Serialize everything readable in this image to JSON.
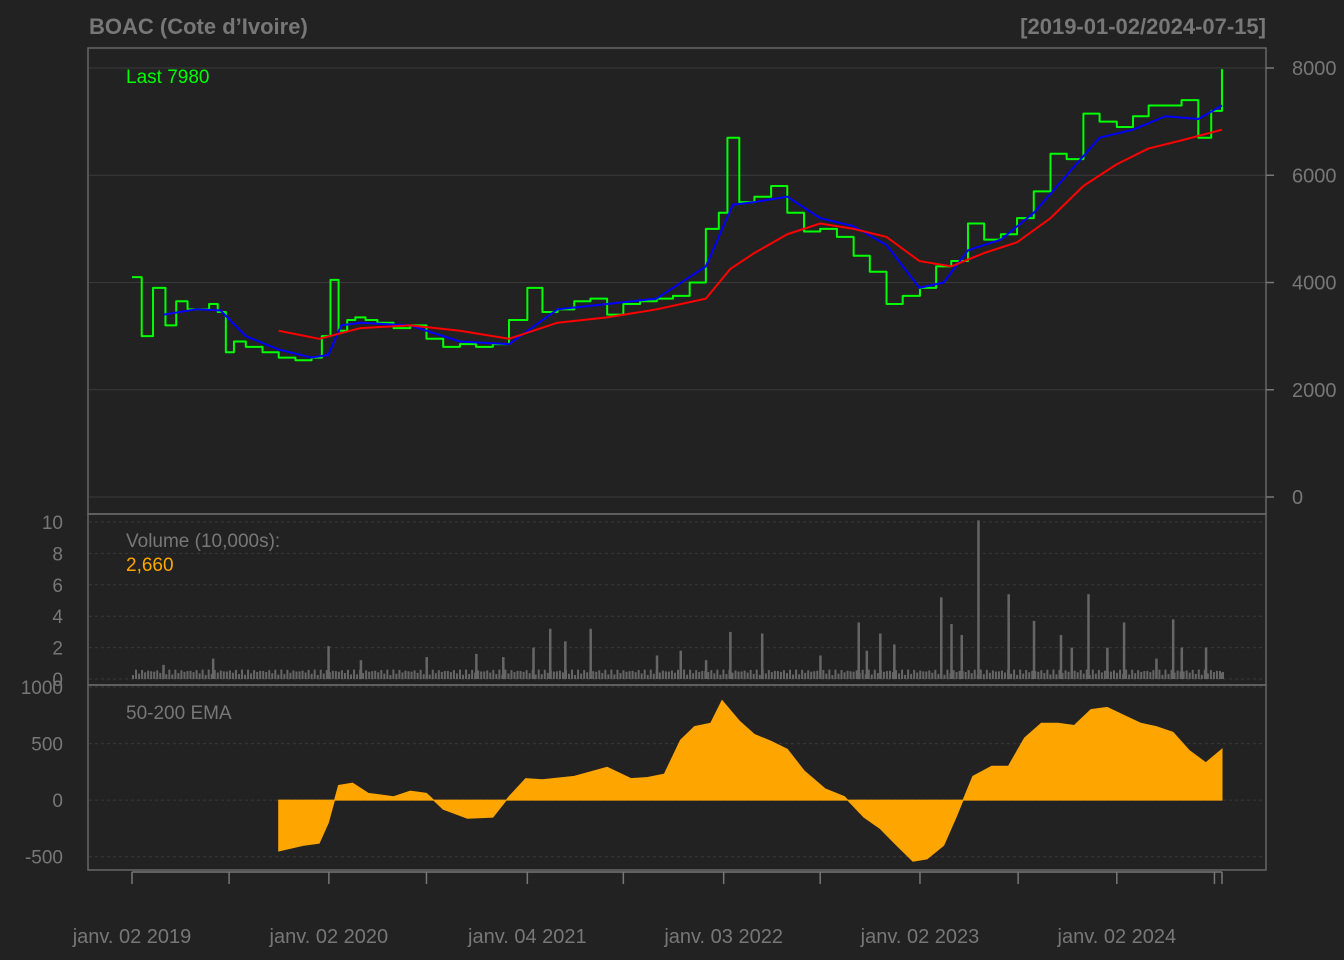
{
  "header": {
    "title": "BOAC (Cote d’Ivoire)",
    "date_range": "[2019-01-02/2024-07-15]"
  },
  "colors": {
    "background": "#222222",
    "price": "#00ff00",
    "ema_fast": "#0000ff",
    "ema_slow": "#ff0000",
    "volume": "#666666",
    "oscillator": "#ffa500",
    "text": "#777777",
    "grid": "#3a3a3a"
  },
  "chart_data": [
    {
      "type": "line",
      "panel": "price",
      "annotation": "Last 7980",
      "ylim": [
        0,
        8000
      ],
      "yticks": [
        0,
        2000,
        4000,
        6000,
        8000
      ],
      "x_tick_labels": [
        "janv. 02 2019",
        "janv. 02 2020",
        "janv. 04 2021",
        "janv. 03 2022",
        "janv. 02 2023",
        "janv. 02 2024"
      ],
      "x_tick_dates": [
        "2019-01-02",
        "2020-01-02",
        "2021-01-04",
        "2022-01-03",
        "2023-01-02",
        "2024-01-02"
      ],
      "series": [
        {
          "x": [
            "2019-01-02",
            "2019-01-20",
            "2019-02-10",
            "2019-03-05",
            "2019-03-25",
            "2019-04-15",
            "2019-05-05",
            "2019-05-25",
            "2019-06-10",
            "2019-06-25",
            "2019-07-10",
            "2019-08-01",
            "2019-09-01",
            "2019-10-01",
            "2019-11-01",
            "2019-12-01",
            "2019-12-20",
            "2020-01-05",
            "2020-01-20",
            "2020-02-05",
            "2020-02-20",
            "2020-03-10",
            "2020-04-01",
            "2020-05-01",
            "2020-06-01",
            "2020-07-01",
            "2020-08-01",
            "2020-09-01",
            "2020-10-01",
            "2020-11-01",
            "2020-12-01",
            "2021-01-04",
            "2021-02-01",
            "2021-03-01",
            "2021-04-01",
            "2021-05-01",
            "2021-06-01",
            "2021-07-01",
            "2021-08-01",
            "2021-09-01",
            "2021-10-01",
            "2021-11-01",
            "2021-12-01",
            "2021-12-25",
            "2022-01-10",
            "2022-02-01",
            "2022-03-01",
            "2022-04-01",
            "2022-05-01",
            "2022-06-01",
            "2022-07-01",
            "2022-08-01",
            "2022-09-01",
            "2022-10-01",
            "2022-11-01",
            "2022-12-01",
            "2023-01-02",
            "2023-02-01",
            "2023-03-01",
            "2023-04-01",
            "2023-05-01",
            "2023-06-01",
            "2023-07-01",
            "2023-08-01",
            "2023-09-01",
            "2023-10-01",
            "2023-11-01",
            "2023-12-01",
            "2024-01-02",
            "2024-02-01",
            "2024-03-01",
            "2024-04-01",
            "2024-05-01",
            "2024-06-01",
            "2024-06-25",
            "2024-07-15"
          ],
          "values": [
            4100,
            3000,
            3900,
            3200,
            3650,
            3500,
            3500,
            3600,
            3450,
            2700,
            2900,
            2800,
            2700,
            2600,
            2550,
            2600,
            3000,
            4050,
            3100,
            3300,
            3350,
            3300,
            3250,
            3150,
            3200,
            2950,
            2800,
            2850,
            2800,
            2850,
            3300,
            3900,
            3450,
            3500,
            3650,
            3700,
            3400,
            3600,
            3650,
            3700,
            3750,
            4000,
            5000,
            5300,
            6700,
            5500,
            5600,
            5800,
            5300,
            4950,
            5000,
            4850,
            4500,
            4200,
            3600,
            3750,
            3900,
            4300,
            4400,
            5100,
            4800,
            4900,
            5200,
            5700,
            6400,
            6300,
            7150,
            7000,
            6900,
            7100,
            7300,
            7300,
            7400,
            6700,
            7200,
            7980
          ]
        },
        {
          "x": [
            "2019-03-01",
            "2019-05-01",
            "2019-06-15",
            "2019-08-01",
            "2019-10-01",
            "2019-12-01",
            "2020-01-01",
            "2020-01-25",
            "2020-03-01",
            "2020-06-01",
            "2020-09-01",
            "2020-12-01",
            "2021-03-01",
            "2021-06-01",
            "2021-09-01",
            "2021-12-01",
            "2022-01-20",
            "2022-03-01",
            "2022-05-01",
            "2022-07-01",
            "2022-09-01",
            "2022-11-01",
            "2023-01-01",
            "2023-02-15",
            "2023-04-01",
            "2023-06-01",
            "2023-08-01",
            "2023-10-01",
            "2023-12-01",
            "2024-02-01",
            "2024-04-01",
            "2024-06-01",
            "2024-07-15"
          ],
          "values": [
            3400,
            3500,
            3480,
            3000,
            2750,
            2600,
            2650,
            3200,
            3250,
            3200,
            2900,
            2850,
            3500,
            3600,
            3700,
            4300,
            5450,
            5500,
            5600,
            5200,
            5050,
            4700,
            3900,
            4000,
            4600,
            4800,
            5300,
            6000,
            6700,
            6850,
            7100,
            7050,
            7300
          ]
        },
        {
          "x": [
            "2019-10-01",
            "2019-12-15",
            "2020-03-01",
            "2020-06-01",
            "2020-09-01",
            "2020-12-01",
            "2021-03-01",
            "2021-06-01",
            "2021-09-01",
            "2021-12-01",
            "2022-01-15",
            "2022-03-01",
            "2022-05-01",
            "2022-07-01",
            "2022-09-01",
            "2022-11-01",
            "2023-01-01",
            "2023-03-01",
            "2023-05-01",
            "2023-07-01",
            "2023-09-01",
            "2023-11-01",
            "2024-01-01",
            "2024-03-01",
            "2024-05-01",
            "2024-07-15"
          ],
          "values": [
            3100,
            2950,
            3150,
            3200,
            3100,
            2950,
            3250,
            3350,
            3500,
            3700,
            4250,
            4550,
            4900,
            5100,
            5000,
            4850,
            4400,
            4300,
            4550,
            4750,
            5200,
            5800,
            6200,
            6500,
            6650,
            6850
          ]
        }
      ]
    },
    {
      "type": "bar",
      "panel": "volume",
      "label": "Volume (10,000s):",
      "last_value": "2,660",
      "ylim": [
        0,
        10
      ],
      "yticks": [
        0,
        2,
        4,
        6,
        8,
        10
      ],
      "x": [
        "2019-03-01",
        "2019-06-01",
        "2020-01-01",
        "2020-03-01",
        "2020-07-01",
        "2020-10-01",
        "2020-11-20",
        "2021-01-15",
        "2021-02-15",
        "2021-03-15",
        "2021-05-01",
        "2021-09-01",
        "2021-10-15",
        "2021-12-01",
        "2022-01-15",
        "2022-03-15",
        "2022-07-01",
        "2022-09-10",
        "2022-09-25",
        "2022-10-20",
        "2022-11-15",
        "2023-02-10",
        "2023-03-01",
        "2023-03-20",
        "2023-04-20",
        "2023-06-15",
        "2023-08-01",
        "2023-09-20",
        "2023-10-10",
        "2023-11-10",
        "2023-12-15",
        "2024-01-15",
        "2024-03-15",
        "2024-04-15",
        "2024-05-01",
        "2024-06-15",
        "2024-07-15"
      ],
      "values": [
        0.9,
        1.3,
        2.1,
        1.2,
        1.4,
        1.6,
        1.4,
        2.0,
        3.2,
        2.4,
        3.2,
        1.5,
        1.8,
        1.2,
        3.0,
        2.9,
        1.5,
        3.6,
        1.8,
        2.9,
        2.2,
        5.2,
        3.5,
        2.8,
        10.1,
        5.4,
        3.7,
        2.8,
        2.0,
        5.4,
        2.0,
        3.6,
        1.3,
        3.8,
        2.0,
        2.0,
        0.4
      ]
    },
    {
      "type": "area",
      "panel": "oscillator",
      "label": "50-200 EMA",
      "ylim": [
        -600,
        1000
      ],
      "yticks": [
        -500,
        0,
        500,
        1000
      ],
      "x": [
        "2019-10-01",
        "2019-11-15",
        "2019-12-15",
        "2020-01-01",
        "2020-01-20",
        "2020-02-15",
        "2020-03-15",
        "2020-05-01",
        "2020-06-01",
        "2020-07-01",
        "2020-08-01",
        "2020-09-15",
        "2020-11-01",
        "2020-12-01",
        "2021-01-01",
        "2021-02-01",
        "2021-04-01",
        "2021-06-01",
        "2021-07-15",
        "2021-08-15",
        "2021-09-15",
        "2021-10-15",
        "2021-11-10",
        "2021-12-10",
        "2021-12-31",
        "2022-02-01",
        "2022-03-01",
        "2022-04-01",
        "2022-05-01",
        "2022-06-01",
        "2022-07-10",
        "2022-08-15",
        "2022-09-20",
        "2022-10-20",
        "2022-11-20",
        "2022-12-20",
        "2023-01-15",
        "2023-02-15",
        "2023-03-10",
        "2023-04-10",
        "2023-05-15",
        "2023-06-15",
        "2023-07-15",
        "2023-08-15",
        "2023-09-15",
        "2023-10-15",
        "2023-11-15",
        "2023-12-15",
        "2024-01-15",
        "2024-02-15",
        "2024-03-15",
        "2024-04-15",
        "2024-05-15",
        "2024-06-15",
        "2024-07-15"
      ],
      "values": [
        -450,
        -400,
        -380,
        -200,
        130,
        150,
        60,
        30,
        80,
        60,
        -80,
        -160,
        -150,
        30,
        190,
        180,
        210,
        290,
        190,
        200,
        230,
        530,
        650,
        680,
        880,
        700,
        580,
        520,
        450,
        260,
        100,
        30,
        -150,
        -250,
        -400,
        -540,
        -520,
        -400,
        -150,
        210,
        300,
        300,
        550,
        680,
        680,
        660,
        800,
        820,
        750,
        680,
        650,
        600,
        440,
        330,
        450
      ]
    }
  ]
}
